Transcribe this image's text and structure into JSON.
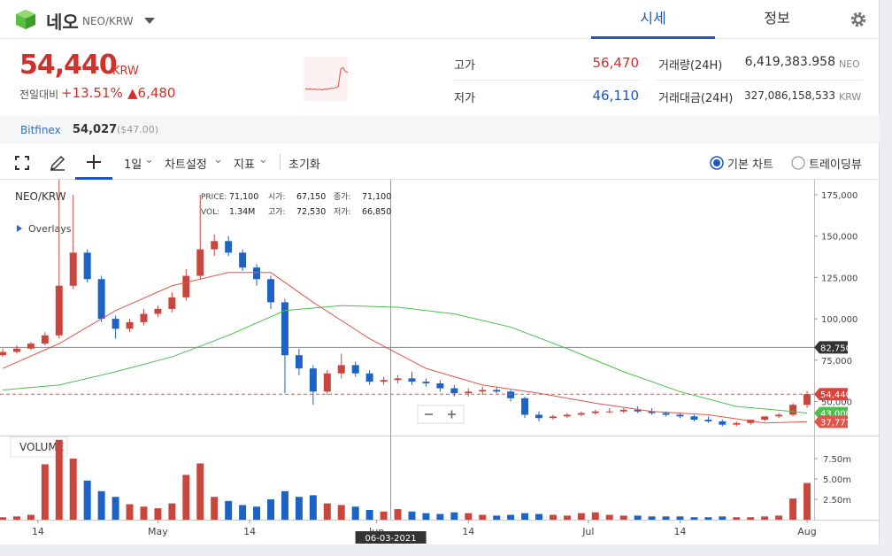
{
  "header": {
    "name": "네오",
    "pair": "NEO/KRW",
    "tabs": [
      "시세",
      "정보"
    ]
  },
  "price": {
    "value": "54,440",
    "unit": "KRW",
    "change_label": "전일대비",
    "change_pct": "+13.51%",
    "change_abs": "▲6,480"
  },
  "sparkline": {
    "values": [
      48200,
      47900,
      48100,
      47800,
      48000,
      47700,
      47900,
      47600,
      48000,
      47800,
      48100,
      48300,
      48200,
      48600,
      49000,
      55800,
      56400,
      54900,
      54440
    ],
    "ylim": [
      44000,
      60000
    ],
    "color": "#e0504a"
  },
  "stats": [
    {
      "label": "고가",
      "value": "56,470"
    },
    {
      "label": "저가",
      "value": "46,110"
    },
    {
      "label": "거래량(24H)",
      "value": "6,419,383.958",
      "unit": "NEO"
    },
    {
      "label": "거래대금(24H)",
      "value": "327,086,158,533",
      "unit": "KRW"
    }
  ],
  "exchange": {
    "name": "Bitfinex",
    "price": "54,027",
    "usd": "($47.00)"
  },
  "toolbar": {
    "interval": "1일",
    "items": [
      "차트설정",
      "지표"
    ],
    "reset": "초기화",
    "radios": [
      "기본 차트",
      "트레이딩뷰"
    ]
  },
  "chart_data": {
    "type": "candlestick",
    "title": "NEO/KRW",
    "overlays_label": "Overlays",
    "volume_label": "VOLUME",
    "up_color": "#c9463d",
    "down_color": "#1d62c6",
    "info": [
      {
        "label": "PRICE:",
        "value": "71,100"
      },
      {
        "label": "시가:",
        "value": "67,150"
      },
      {
        "label": "종가:",
        "value": "71,100"
      },
      {
        "label": "VOL:",
        "value": "1.34M"
      },
      {
        "label": "고가:",
        "value": "72,530"
      },
      {
        "label": "저가:",
        "value": "66,850"
      }
    ],
    "dates": [
      "2021-04-09",
      "2021-04-11",
      "2021-04-13",
      "2021-04-15",
      "2021-04-17",
      "2021-04-19",
      "2021-04-21",
      "2021-04-23",
      "2021-04-25",
      "2021-04-27",
      "2021-04-29",
      "2021-05-01",
      "2021-05-03",
      "2021-05-05",
      "2021-05-07",
      "2021-05-09",
      "2021-05-11",
      "2021-05-13",
      "2021-05-15",
      "2021-05-17",
      "2021-05-19",
      "2021-05-21",
      "2021-05-23",
      "2021-05-25",
      "2021-05-27",
      "2021-05-29",
      "2021-05-31",
      "2021-06-02",
      "2021-06-04",
      "2021-06-06",
      "2021-06-08",
      "2021-06-10",
      "2021-06-12",
      "2021-06-14",
      "2021-06-16",
      "2021-06-18",
      "2021-06-20",
      "2021-06-22",
      "2021-06-24",
      "2021-06-26",
      "2021-06-28",
      "2021-06-30",
      "2021-07-02",
      "2021-07-04",
      "2021-07-06",
      "2021-07-08",
      "2021-07-10",
      "2021-07-12",
      "2021-07-14",
      "2021-07-16",
      "2021-07-18",
      "2021-07-20",
      "2021-07-22",
      "2021-07-24",
      "2021-07-26",
      "2021-07-28",
      "2021-07-30",
      "2021-08-01"
    ],
    "open": [
      78000,
      80000,
      82000,
      85000,
      90000,
      120000,
      140000,
      124000,
      100000,
      94000,
      98000,
      103000,
      106000,
      113000,
      126000,
      142000,
      147000,
      140000,
      131000,
      124000,
      110000,
      78000,
      70000,
      56000,
      67000,
      72000,
      67000,
      62000,
      63000,
      64000,
      62000,
      61000,
      58000,
      55000,
      56000,
      57000,
      56000,
      52000,
      42000,
      40000,
      41000,
      42000,
      43000,
      44000,
      44000,
      45000,
      44000,
      43000,
      42000,
      41000,
      39000,
      38000,
      36000,
      37000,
      39000,
      41000,
      42000,
      48000
    ],
    "high": [
      82000,
      84000,
      86000,
      92000,
      184000,
      175000,
      142000,
      126000,
      102000,
      100000,
      106000,
      108000,
      116000,
      130000,
      175000,
      151000,
      150000,
      142000,
      133000,
      126000,
      112000,
      82000,
      72000,
      69000,
      79000,
      74000,
      69000,
      65000,
      66000,
      68000,
      64000,
      63000,
      60000,
      58000,
      59000,
      59000,
      57000,
      53000,
      44000,
      42000,
      43000,
      44000,
      45000,
      46000,
      46000,
      47000,
      46000,
      44000,
      43000,
      42000,
      41000,
      39000,
      38000,
      39000,
      41000,
      43000,
      49000,
      56470
    ],
    "low": [
      77000,
      79000,
      81000,
      84000,
      88000,
      118000,
      122000,
      98000,
      88000,
      92000,
      96000,
      101000,
      104000,
      111000,
      124000,
      138000,
      138000,
      129000,
      120000,
      106000,
      55000,
      66000,
      48000,
      54000,
      64000,
      65000,
      60000,
      60000,
      61000,
      60000,
      59000,
      56000,
      53000,
      53000,
      54000,
      55000,
      50000,
      40000,
      38000,
      39000,
      40000,
      41000,
      42000,
      43000,
      43000,
      43000,
      42000,
      41000,
      40000,
      38000,
      37000,
      35000,
      35000,
      36000,
      38000,
      40000,
      41000,
      46110
    ],
    "close": [
      80000,
      82000,
      85000,
      90000,
      120000,
      140000,
      124000,
      100000,
      94000,
      98000,
      103000,
      106000,
      113000,
      126000,
      142000,
      147000,
      140000,
      131000,
      124000,
      110000,
      78000,
      70000,
      56000,
      67000,
      72000,
      67000,
      62000,
      63000,
      64000,
      62000,
      61000,
      58000,
      55000,
      56000,
      57000,
      56000,
      52000,
      42000,
      40000,
      41000,
      42000,
      43000,
      44000,
      44000,
      45000,
      44000,
      43000,
      42000,
      41000,
      39000,
      38000,
      36000,
      37000,
      39000,
      41000,
      42000,
      48000,
      54440
    ],
    "volume": [
      0.3,
      0.4,
      0.6,
      6.8,
      9.8,
      7.5,
      4.8,
      3.5,
      2.8,
      1.9,
      1.6,
      1.4,
      2.0,
      5.5,
      6.9,
      2.8,
      2.3,
      1.8,
      1.6,
      2.5,
      3.5,
      2.8,
      3.0,
      2.0,
      1.8,
      1.6,
      1.2,
      1.0,
      1.3,
      1.0,
      0.8,
      0.7,
      0.9,
      0.8,
      0.6,
      0.5,
      0.6,
      0.8,
      0.7,
      0.6,
      0.5,
      0.8,
      0.9,
      0.6,
      0.5,
      0.5,
      0.4,
      0.4,
      0.4,
      0.3,
      0.3,
      0.4,
      0.3,
      0.3,
      0.4,
      0.5,
      2.6,
      4.5
    ],
    "overlays": [
      {
        "color": "#e0554c",
        "dates": [
          "2021-04-09",
          "2021-04-17",
          "2021-04-25",
          "2021-05-03",
          "2021-05-11",
          "2021-05-17",
          "2021-05-23",
          "2021-05-31",
          "2021-06-08",
          "2021-06-16",
          "2021-06-24",
          "2021-07-02",
          "2021-07-10",
          "2021-07-18",
          "2021-07-26",
          "2021-08-01"
        ],
        "values": [
          70000,
          85000,
          105000,
          120000,
          128000,
          128000,
          110000,
          88000,
          70000,
          60000,
          55000,
          49000,
          44000,
          42000,
          37000,
          37777
        ],
        "last_label": "37,777"
      },
      {
        "color": "#4cbf4c",
        "dates": [
          "2021-04-09",
          "2021-04-17",
          "2021-04-25",
          "2021-05-03",
          "2021-05-11",
          "2021-05-19",
          "2021-05-27",
          "2021-06-04",
          "2021-06-12",
          "2021-06-20",
          "2021-06-28",
          "2021-07-06",
          "2021-07-14",
          "2021-07-22",
          "2021-07-30",
          "2021-08-01"
        ],
        "values": [
          57000,
          60000,
          68000,
          77000,
          90000,
          105000,
          108000,
          107000,
          103000,
          95000,
          82000,
          68000,
          56000,
          47000,
          44000,
          43000
        ],
        "last_label": "43,000"
      }
    ],
    "current_price": 54440,
    "current_price_label": "54,440",
    "crosshair": {
      "date": "2021-06-03",
      "date_label": "06-03-2021",
      "price": 82750,
      "price_label": "82,750"
    },
    "xlim": [
      "2021-04-09",
      "2021-08-02"
    ],
    "xticks": [
      {
        "value": "2021-04-14",
        "label": "14"
      },
      {
        "value": "2021-05-01",
        "label": "May"
      },
      {
        "value": "2021-05-14",
        "label": "14"
      },
      {
        "value": "2021-06-01",
        "label": "Jun"
      },
      {
        "value": "2021-06-14",
        "label": "14"
      },
      {
        "value": "2021-07-01",
        "label": "Jul"
      },
      {
        "value": "2021-07-14",
        "label": "14"
      },
      {
        "value": "2021-08-01",
        "label": "Aug"
      }
    ],
    "ylim": [
      29400,
      184100
    ],
    "yticks": [
      {
        "value": 50000,
        "label": "50,000"
      },
      {
        "value": 75000,
        "label": "75,000"
      },
      {
        "value": 100000,
        "label": "100,000"
      },
      {
        "value": 125000,
        "label": "125,000"
      },
      {
        "value": 150000,
        "label": "150,000"
      },
      {
        "value": 175000,
        "label": "175,000"
      }
    ],
    "volume_ylim": [
      0,
      10.1
    ],
    "volume_yticks": [
      {
        "value": 2.5,
        "label": "2.50m"
      },
      {
        "value": 5,
        "label": "5.00m"
      },
      {
        "value": 7.5,
        "label": "7.50m"
      }
    ]
  }
}
